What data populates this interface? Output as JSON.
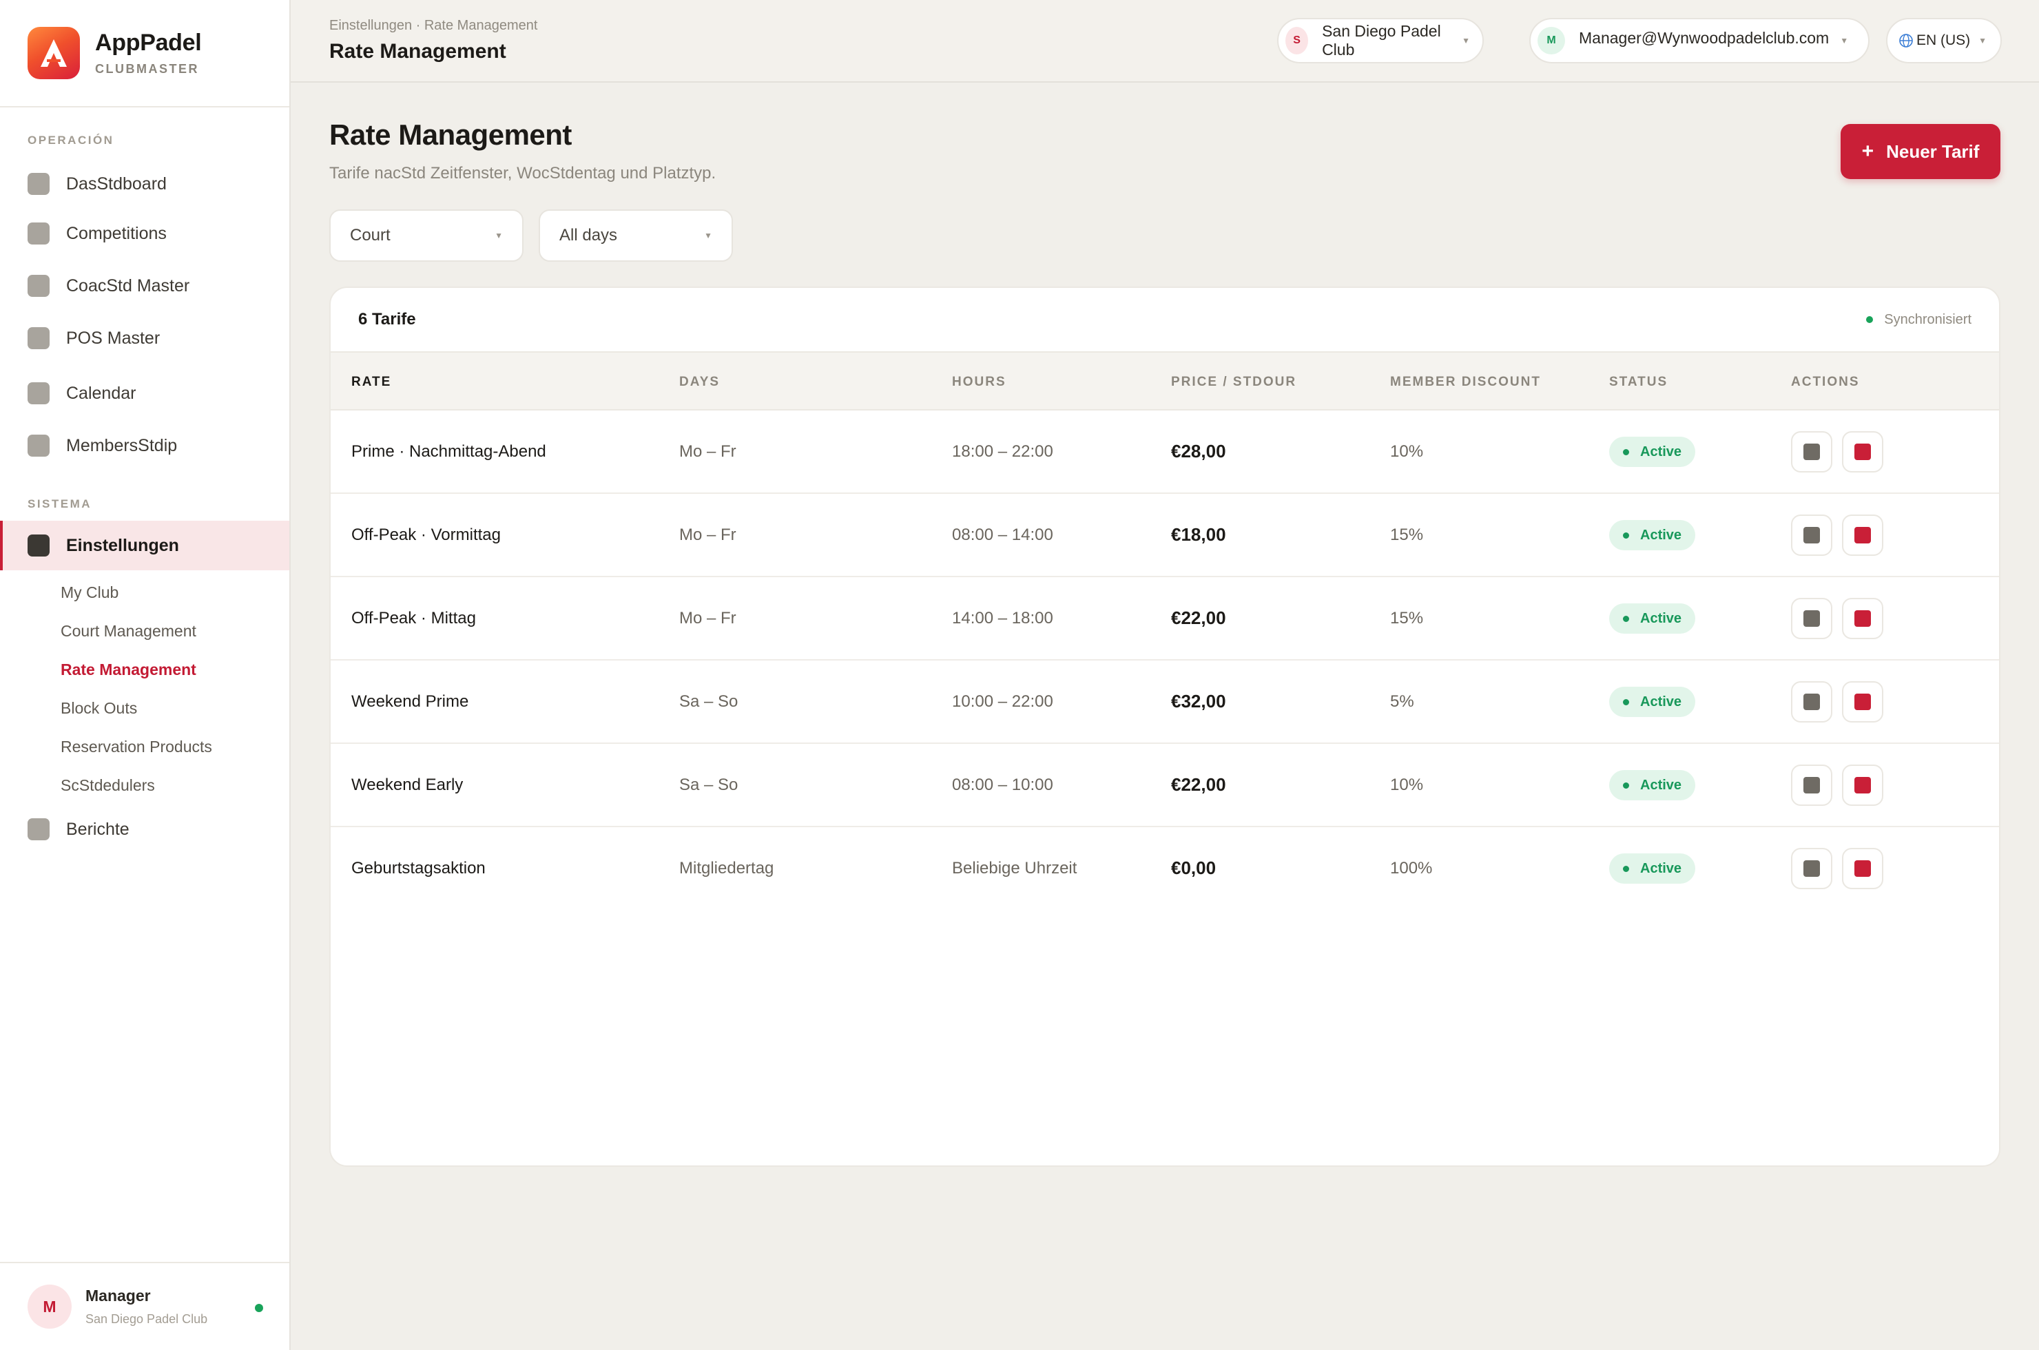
{
  "brand": {
    "name": "AppPadel",
    "subtitle": "CLUBMASTER"
  },
  "sidebar": {
    "section_operation": "OPERACIÓN",
    "section_system": "SISTEMA",
    "operation_items": [
      {
        "label": "DasStdboard",
        "icon": "dashboard-icon"
      },
      {
        "label": "Competitions",
        "icon": "trophy-icon"
      },
      {
        "label": "CoacStd Master",
        "icon": "coach-icon"
      },
      {
        "label": "POS Master",
        "icon": "pos-icon"
      },
      {
        "label": "Calendar",
        "icon": "calendar-icon"
      },
      {
        "label": "MembersStdip",
        "icon": "members-icon"
      }
    ],
    "settings": {
      "label": "Einstellungen",
      "icon": "settings-icon"
    },
    "settings_children": [
      "My Club",
      "Court Management",
      "Rate Management",
      "Block Outs",
      "Reservation Products",
      "ScStdedulers"
    ],
    "active_child": "Rate Management",
    "reports": {
      "label": "Berichte",
      "icon": "reports-icon"
    }
  },
  "user": {
    "initial": "M",
    "name": "Manager",
    "club": "San Diego Padel Club",
    "status": "online"
  },
  "topbar": {
    "breadcrumb": "Einstellungen · Rate Management",
    "title": "Rate Management",
    "club_initial": "S",
    "club": "San Diego Padel Club",
    "account_initial": "M",
    "account": "Manager@Wynwoodpadelclub.com",
    "language": "EN (US)"
  },
  "page": {
    "title": "Rate Management",
    "subtitle": "Tarife nacStd Zeitfenster, WocStdentag und Platztyp.",
    "new_button": "Neuer Tarif",
    "new_button_icon": "+"
  },
  "filters": {
    "court": "Court",
    "days": "All days"
  },
  "table": {
    "count_label": "6 Tarife",
    "sync_label": "Synchronisiert",
    "headers": {
      "rate": "RATE",
      "days": "DAYS",
      "hours": "HOURS",
      "price": "PRICE / STDOUR",
      "discount": "MEMBER DISCOUNT",
      "status": "STATUS",
      "actions": "ACTIONS"
    },
    "rows": [
      {
        "rate": "Prime · Nachmittag-Abend",
        "days": "Mo – Fr",
        "hours": "18:00 – 22:00",
        "price": "€28,00",
        "discount": "10%",
        "status": "Active"
      },
      {
        "rate": "Off-Peak · Vormittag",
        "days": "Mo – Fr",
        "hours": "08:00 – 14:00",
        "price": "€18,00",
        "discount": "15%",
        "status": "Active"
      },
      {
        "rate": "Off-Peak · Mittag",
        "days": "Mo – Fr",
        "hours": "14:00 – 18:00",
        "price": "€22,00",
        "discount": "15%",
        "status": "Active"
      },
      {
        "rate": "Weekend Prime",
        "days": "Sa – So",
        "hours": "10:00 – 22:00",
        "price": "€32,00",
        "discount": "5%",
        "status": "Active"
      },
      {
        "rate": "Weekend Early",
        "days": "Sa – So",
        "hours": "08:00 – 10:00",
        "price": "€22,00",
        "discount": "10%",
        "status": "Active"
      },
      {
        "rate": "Geburtstagsaktion",
        "days": "Mitgliedertag",
        "hours": "Beliebige Uhrzeit",
        "price": "€0,00",
        "discount": "100%",
        "status": "Active"
      }
    ]
  },
  "colors": {
    "accent": "#c91f37",
    "active_badge_bg": "#e2f5ea",
    "active_badge_text": "#18985a",
    "edit_icon": "#6f6b64",
    "delete_icon": "#c91f37"
  }
}
